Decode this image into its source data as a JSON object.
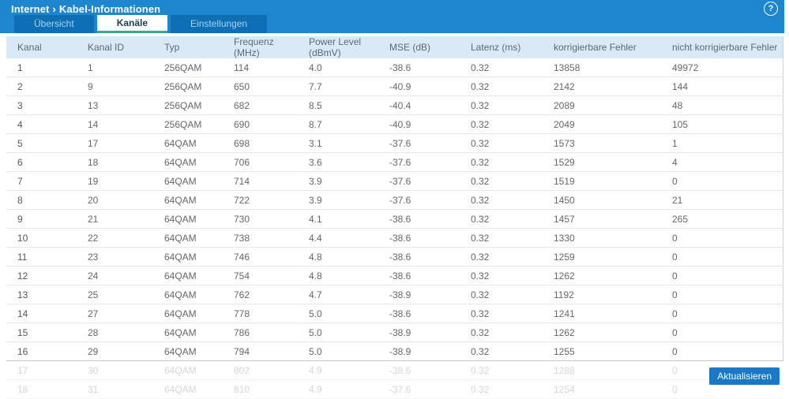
{
  "header": {
    "breadcrumb_section": "Internet",
    "breadcrumb_separator": "›",
    "breadcrumb_page": "Kabel-Informationen",
    "help_icon": "?"
  },
  "tabs": [
    {
      "label": "Übersicht",
      "active": false
    },
    {
      "label": "Kanäle",
      "active": true
    },
    {
      "label": "Einstellungen",
      "active": false
    }
  ],
  "table": {
    "columns": [
      "Kanal",
      "Kanal ID",
      "Typ",
      "Frequenz (MHz)",
      "Power Level (dBmV)",
      "MSE (dB)",
      "Latenz (ms)",
      "korrigierbare Fehler",
      "nicht korrigierbare Fehler"
    ],
    "rows": [
      [
        "1",
        "1",
        "256QAM",
        "114",
        "4.0",
        "-38.6",
        "0.32",
        "13858",
        "49972"
      ],
      [
        "2",
        "9",
        "256QAM",
        "650",
        "7.7",
        "-40.9",
        "0.32",
        "2142",
        "144"
      ],
      [
        "3",
        "13",
        "256QAM",
        "682",
        "8.5",
        "-40.4",
        "0.32",
        "2089",
        "48"
      ],
      [
        "4",
        "14",
        "256QAM",
        "690",
        "8.7",
        "-40.9",
        "0.32",
        "2049",
        "105"
      ],
      [
        "5",
        "17",
        "64QAM",
        "698",
        "3.1",
        "-37.6",
        "0.32",
        "1573",
        "1"
      ],
      [
        "6",
        "18",
        "64QAM",
        "706",
        "3.6",
        "-37.6",
        "0.32",
        "1529",
        "4"
      ],
      [
        "7",
        "19",
        "64QAM",
        "714",
        "3.9",
        "-37.6",
        "0.32",
        "1519",
        "0"
      ],
      [
        "8",
        "20",
        "64QAM",
        "722",
        "3.9",
        "-37.6",
        "0.32",
        "1450",
        "21"
      ],
      [
        "9",
        "21",
        "64QAM",
        "730",
        "4.1",
        "-38.6",
        "0.32",
        "1457",
        "265"
      ],
      [
        "10",
        "22",
        "64QAM",
        "738",
        "4.4",
        "-38.6",
        "0.32",
        "1330",
        "0"
      ],
      [
        "11",
        "23",
        "64QAM",
        "746",
        "4.8",
        "-38.6",
        "0.32",
        "1259",
        "0"
      ],
      [
        "12",
        "24",
        "64QAM",
        "754",
        "4.8",
        "-38.6",
        "0.32",
        "1262",
        "0"
      ],
      [
        "13",
        "25",
        "64QAM",
        "762",
        "4.7",
        "-38.9",
        "0.32",
        "1192",
        "0"
      ],
      [
        "14",
        "27",
        "64QAM",
        "778",
        "5.0",
        "-38.6",
        "0.32",
        "1241",
        "0"
      ],
      [
        "15",
        "28",
        "64QAM",
        "786",
        "5.0",
        "-38.9",
        "0.32",
        "1262",
        "0"
      ],
      [
        "16",
        "29",
        "64QAM",
        "794",
        "5.0",
        "-38.9",
        "0.32",
        "1255",
        "0"
      ],
      [
        "17",
        "30",
        "64QAM",
        "802",
        "4.9",
        "-38.6",
        "0.32",
        "1288",
        "0"
      ],
      [
        "18",
        "31",
        "64QAM",
        "810",
        "4.9",
        "-37.6",
        "0.32",
        "1254",
        "0"
      ]
    ],
    "faded_from_index": 16
  },
  "footer": {
    "refresh_label": "Aktualisieren"
  },
  "colors": {
    "topbar_blue": "#1e86cf",
    "tab_inactive_blue": "#0e6fb6",
    "tab_inactive_text": "#a6d3ef",
    "active_tab_underline": "#43a38c",
    "table_header_bg": "#d9e9f5",
    "button_blue": "#1b78c4"
  }
}
